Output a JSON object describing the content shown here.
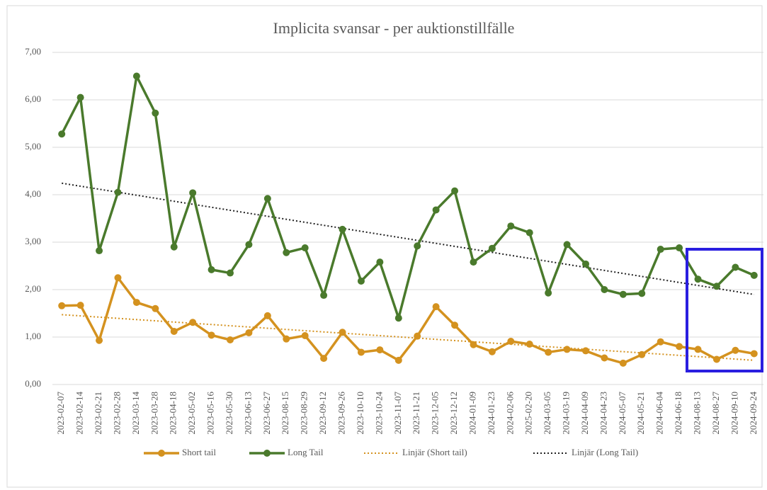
{
  "chart_data": {
    "type": "line",
    "title": "Implicita svansar - per auktionstillfälle",
    "categories": [
      "2023-02-07",
      "2023-02-14",
      "2023-02-21",
      "2023-02-28",
      "2023-03-14",
      "2023-03-28",
      "2023-04-18",
      "2023-05-02",
      "2023-05-16",
      "2023-05-30",
      "2023-06-13",
      "2023-06-27",
      "2023-08-15",
      "2023-08-29",
      "2023-09-12",
      "2023-09-26",
      "2023-10-10",
      "2023-10-24",
      "2023-11-07",
      "2023-11-21",
      "2023-12-05",
      "2023-12-12",
      "2024-01-09",
      "2024-01-23",
      "2024-02-06",
      "2025-02-20",
      "2024-03-05",
      "2024-03-19",
      "2024-04-09",
      "2024-04-23",
      "2024-05-07",
      "2024-05-21",
      "2024-06-04",
      "2024-06-18",
      "2024-08-13",
      "2024-08-27",
      "2024-09-10",
      "2024-09-24"
    ],
    "series": [
      {
        "name": "Short tail",
        "color": "#d4921f",
        "values": [
          1.66,
          1.67,
          0.93,
          2.25,
          1.73,
          1.6,
          1.12,
          1.31,
          1.04,
          0.94,
          1.09,
          1.45,
          0.96,
          1.03,
          0.55,
          1.1,
          0.68,
          0.73,
          0.51,
          1.02,
          1.64,
          1.25,
          0.84,
          0.69,
          0.91,
          0.85,
          0.68,
          0.74,
          0.71,
          0.56,
          0.45,
          0.63,
          0.9,
          0.8,
          0.74,
          0.53,
          0.72,
          0.65
        ],
        "trendline": {
          "name": "Linjär (Short tail)",
          "color": "#d4921f",
          "type": "linear"
        }
      },
      {
        "name": "Long Tail",
        "color": "#4a7a2c",
        "values": [
          5.28,
          6.05,
          2.82,
          4.05,
          6.5,
          5.72,
          2.9,
          4.04,
          2.42,
          2.35,
          2.95,
          3.92,
          2.78,
          2.88,
          1.88,
          3.27,
          2.18,
          2.58,
          1.4,
          2.92,
          3.68,
          4.08,
          2.58,
          2.87,
          3.34,
          3.2,
          1.93,
          2.95,
          2.54,
          2.0,
          1.9,
          1.92,
          2.85,
          2.88,
          2.22,
          2.07,
          2.47,
          2.3
        ],
        "trendline": {
          "name": "Linjär (Long Tail)",
          "color": "#222222",
          "type": "linear"
        }
      }
    ],
    "ylim": [
      0,
      7
    ],
    "yticks": [
      {
        "value": 0,
        "label": "0,00"
      },
      {
        "value": 1,
        "label": "1,00"
      },
      {
        "value": 2,
        "label": "2,00"
      },
      {
        "value": 3,
        "label": "3,00"
      },
      {
        "value": 4,
        "label": "4,00"
      },
      {
        "value": 5,
        "label": "5,00"
      },
      {
        "value": 6,
        "label": "6,00"
      },
      {
        "value": 7,
        "label": "7,00"
      }
    ],
    "grid": true,
    "legend": "bottom"
  }
}
